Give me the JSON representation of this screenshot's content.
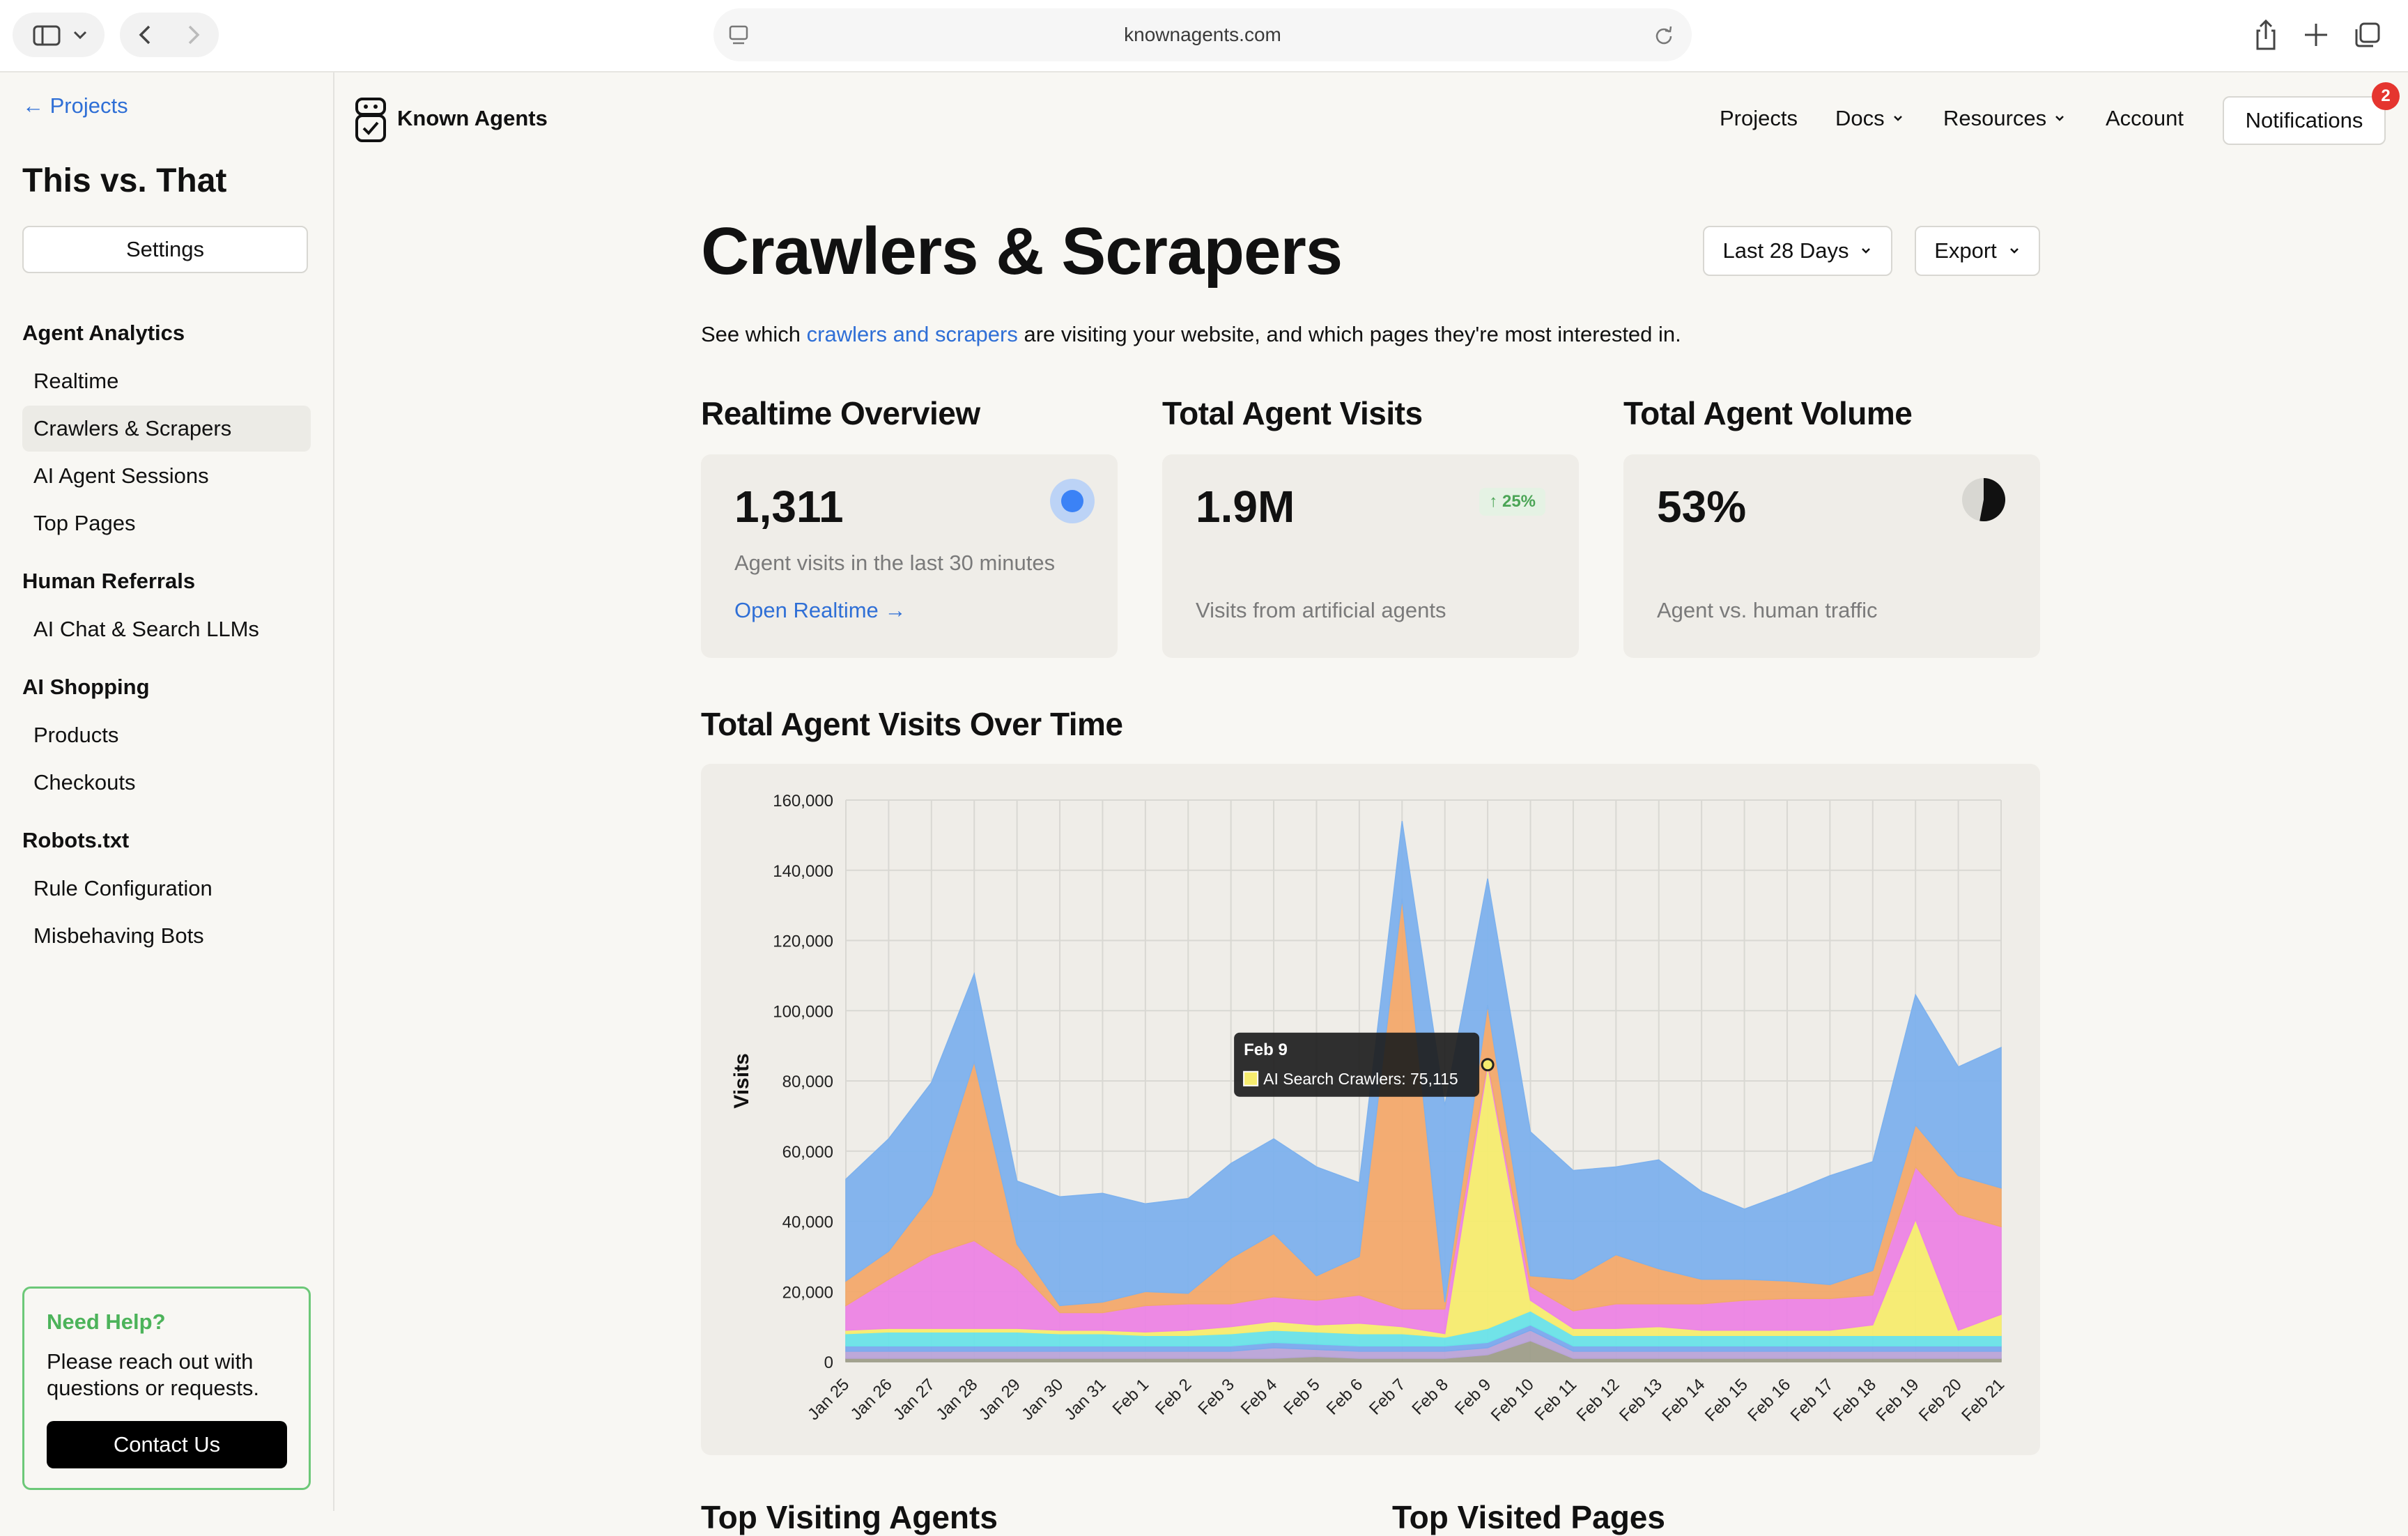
{
  "browser": {
    "url": "knownagents.com"
  },
  "sidebar": {
    "back_label": "← Projects",
    "project_title": "This vs. That",
    "settings_label": "Settings",
    "sections": [
      {
        "title": "Agent Analytics",
        "items": [
          "Realtime",
          "Crawlers & Scrapers",
          "AI Agent Sessions",
          "Top Pages"
        ]
      },
      {
        "title": "Human Referrals",
        "items": [
          "AI Chat & Search LLMs"
        ]
      },
      {
        "title": "AI Shopping",
        "items": [
          "Products",
          "Checkouts"
        ]
      },
      {
        "title": "Robots.txt",
        "items": [
          "Rule Configuration",
          "Misbehaving Bots"
        ]
      }
    ],
    "active_item": "Crawlers & Scrapers",
    "help": {
      "title": "Need Help?",
      "text": "Please reach out with questions or requests.",
      "button": "Contact Us"
    }
  },
  "header": {
    "brand": "Known Agents",
    "nav": {
      "projects": "Projects",
      "docs": "Docs",
      "resources": "Resources",
      "account": "Account"
    },
    "notifications_label": "Notifications",
    "notifications_count": "2"
  },
  "main": {
    "title": "Crawlers & Scrapers",
    "range_label": "Last 28 Days",
    "export_label": "Export",
    "subtitle_before": "See which ",
    "subtitle_link": "crawlers and scrapers",
    "subtitle_after": " are visiting your website, and which pages they're most interested in.",
    "cards": {
      "realtime": {
        "title": "Realtime Overview",
        "value": "1,311",
        "desc": "Agent visits in the last 30 minutes",
        "link": "Open Realtime →"
      },
      "visits": {
        "title": "Total Agent Visits",
        "value": "1.9M",
        "badge": "↑ 25%",
        "desc": "Visits from artificial agents"
      },
      "volume": {
        "title": "Total Agent Volume",
        "value": "53%",
        "desc": "Agent vs. human traffic",
        "pie_fraction": 0.53
      }
    },
    "chart_title": "Total Agent Visits Over Time",
    "lower_titles": [
      "Top Visiting Agents",
      "Top Visited Pages"
    ]
  },
  "colors": {
    "accent": "#2f6fd6",
    "live_dot": "#3b82f6",
    "badge_red": "#e5352f",
    "help_green": "#4cb35a"
  },
  "chart_data": {
    "type": "area",
    "stacked": true,
    "ylabel": "Visits",
    "ylim": [
      0,
      160000
    ],
    "yticks": [
      0,
      20000,
      40000,
      60000,
      80000,
      100000,
      120000,
      140000,
      160000
    ],
    "ytick_labels": [
      "0",
      "20,000",
      "40,000",
      "60,000",
      "80,000",
      "100,000",
      "120,000",
      "140,000",
      "160,000"
    ],
    "grid": true,
    "x": [
      "Jan 25",
      "Jan 26",
      "Jan 27",
      "Jan 28",
      "Jan 29",
      "Jan 30",
      "Jan 31",
      "Feb 1",
      "Feb 2",
      "Feb 3",
      "Feb 4",
      "Feb 5",
      "Feb 6",
      "Feb 7",
      "Feb 8",
      "Feb 9",
      "Feb 10",
      "Feb 11",
      "Feb 12",
      "Feb 13",
      "Feb 14",
      "Feb 15",
      "Feb 16",
      "Feb 17",
      "Feb 18",
      "Feb 19",
      "Feb 20",
      "Feb 21"
    ],
    "series": [
      {
        "color": "#9e9e8a",
        "values": [
          1000,
          1000,
          1000,
          1000,
          1000,
          1000,
          1000,
          1000,
          1000,
          1000,
          1000,
          1500,
          1000,
          1000,
          1000,
          2000,
          6000,
          1000,
          1000,
          1000,
          1000,
          1000,
          1000,
          1000,
          1000,
          1000,
          1000,
          1000
        ]
      },
      {
        "color": "#b9a4d8",
        "values": [
          2000,
          2000,
          2000,
          2000,
          2000,
          2000,
          2000,
          2000,
          2000,
          2000,
          3000,
          2000,
          2000,
          2000,
          2000,
          2000,
          3000,
          2000,
          2000,
          2000,
          2000,
          2000,
          2000,
          2000,
          2000,
          2000,
          2000,
          2000
        ]
      },
      {
        "color": "#7aa9ee",
        "values": [
          1500,
          1500,
          1500,
          1500,
          1500,
          1500,
          1500,
          1500,
          1500,
          1500,
          1500,
          1500,
          1500,
          1500,
          1500,
          1500,
          1500,
          1500,
          1500,
          1500,
          1500,
          1500,
          1500,
          1500,
          1500,
          1500,
          1500,
          1500
        ]
      },
      {
        "color": "#69e3e8",
        "values": [
          3500,
          4000,
          4000,
          4000,
          4000,
          3500,
          3500,
          3000,
          3000,
          3500,
          3500,
          3500,
          3500,
          3500,
          2500,
          4000,
          4000,
          3000,
          3000,
          3000,
          3000,
          3000,
          3000,
          3000,
          3000,
          3000,
          3000,
          3000
        ]
      },
      {
        "color": "#f6ec6f",
        "values": [
          1000,
          1000,
          1000,
          1000,
          1000,
          1000,
          1000,
          1000,
          1500,
          2000,
          2500,
          2000,
          3000,
          2000,
          1000,
          75115,
          3000,
          2000,
          2000,
          2500,
          1500,
          1500,
          1500,
          1500,
          3000,
          33000,
          1500,
          6000
        ]
      },
      {
        "color": "#ec84e4",
        "values": [
          7000,
          14000,
          21000,
          25000,
          17000,
          5000,
          5000,
          7500,
          7500,
          6500,
          7000,
          7000,
          8000,
          5000,
          7000,
          1000,
          4000,
          5000,
          7000,
          6500,
          7500,
          8500,
          9000,
          9000,
          8500,
          15000,
          33000,
          25000
        ]
      },
      {
        "color": "#f2a96b",
        "values": [
          7000,
          8000,
          17000,
          51000,
          7000,
          2000,
          3000,
          4000,
          3000,
          13000,
          18000,
          7000,
          11000,
          117000,
          2000,
          16000,
          3000,
          9000,
          14000,
          10000,
          7000,
          6000,
          5000,
          4000,
          7000,
          12000,
          11000,
          11000
        ]
      },
      {
        "color": "#7db1ed",
        "values": [
          29000,
          32000,
          32000,
          25000,
          18000,
          31000,
          31000,
          25000,
          27000,
          27000,
          27000,
          31000,
          21000,
          22000,
          56000,
          36000,
          41000,
          31000,
          25000,
          31000,
          25000,
          20000,
          25000,
          31000,
          31000,
          37000,
          31000,
          40000
        ]
      }
    ],
    "tooltip": {
      "date": "Feb 9",
      "series": "AI Search Crawlers",
      "value": "75,115"
    }
  }
}
